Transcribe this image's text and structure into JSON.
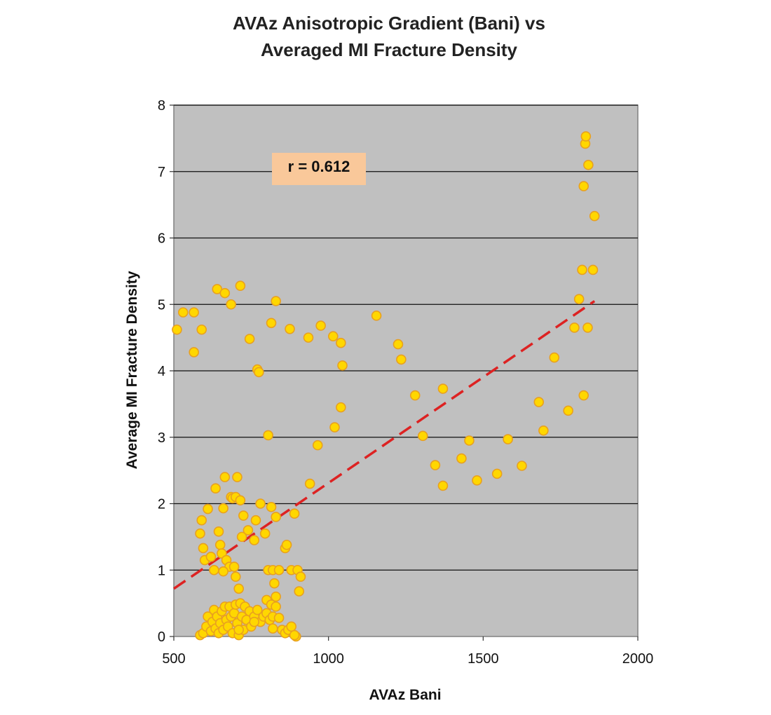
{
  "chart_data": {
    "type": "scatter",
    "title_lines": [
      "AVAz Anisotropic Gradient (Bani) vs",
      "Averaged MI Fracture Density"
    ],
    "xlabel": "AVAz Bani",
    "ylabel": "Average MI Fracture Density",
    "xlim": [
      500,
      2000
    ],
    "ylim": [
      0,
      8
    ],
    "xticks": [
      500,
      1000,
      1500,
      2000
    ],
    "yticks": [
      0,
      1,
      2,
      3,
      4,
      5,
      6,
      7,
      8
    ],
    "grid": "horizontal",
    "annotation": "r = 0.612",
    "colors": {
      "plot_background": "#c0c0c0",
      "point_fill": "#ffd700",
      "point_stroke": "#e8a020",
      "trendline": "#dd2222",
      "annotation_background": "#f9c89a",
      "gridline": "#111111"
    },
    "trendline": {
      "x": [
        500,
        1860
      ],
      "y": [
        0.72,
        5.05
      ],
      "style": "dashed"
    },
    "points": [
      {
        "x": 510,
        "y": 4.62
      },
      {
        "x": 530,
        "y": 4.88
      },
      {
        "x": 565,
        "y": 4.88
      },
      {
        "x": 565,
        "y": 4.28
      },
      {
        "x": 590,
        "y": 4.62
      },
      {
        "x": 640,
        "y": 5.23
      },
      {
        "x": 665,
        "y": 5.17
      },
      {
        "x": 685,
        "y": 5.0
      },
      {
        "x": 715,
        "y": 5.28
      },
      {
        "x": 745,
        "y": 4.48
      },
      {
        "x": 770,
        "y": 4.02
      },
      {
        "x": 775,
        "y": 3.98
      },
      {
        "x": 805,
        "y": 3.03
      },
      {
        "x": 815,
        "y": 4.72
      },
      {
        "x": 830,
        "y": 5.05
      },
      {
        "x": 875,
        "y": 4.63
      },
      {
        "x": 935,
        "y": 4.5
      },
      {
        "x": 965,
        "y": 2.88
      },
      {
        "x": 975,
        "y": 4.68
      },
      {
        "x": 1015,
        "y": 4.52
      },
      {
        "x": 1020,
        "y": 3.15
      },
      {
        "x": 1040,
        "y": 4.42
      },
      {
        "x": 1040,
        "y": 3.45
      },
      {
        "x": 1045,
        "y": 4.08
      },
      {
        "x": 940,
        "y": 2.3
      },
      {
        "x": 1155,
        "y": 4.83
      },
      {
        "x": 1225,
        "y": 4.4
      },
      {
        "x": 1235,
        "y": 4.17
      },
      {
        "x": 1280,
        "y": 3.63
      },
      {
        "x": 1305,
        "y": 3.02
      },
      {
        "x": 1345,
        "y": 2.58
      },
      {
        "x": 1370,
        "y": 3.73
      },
      {
        "x": 1370,
        "y": 2.27
      },
      {
        "x": 1430,
        "y": 2.68
      },
      {
        "x": 1455,
        "y": 2.95
      },
      {
        "x": 1480,
        "y": 2.35
      },
      {
        "x": 1545,
        "y": 2.45
      },
      {
        "x": 1580,
        "y": 2.97
      },
      {
        "x": 1625,
        "y": 2.57
      },
      {
        "x": 1680,
        "y": 3.53
      },
      {
        "x": 1695,
        "y": 3.1
      },
      {
        "x": 1730,
        "y": 4.2
      },
      {
        "x": 1775,
        "y": 3.4
      },
      {
        "x": 1795,
        "y": 4.65
      },
      {
        "x": 1810,
        "y": 5.08
      },
      {
        "x": 1820,
        "y": 5.52
      },
      {
        "x": 1825,
        "y": 3.63
      },
      {
        "x": 1825,
        "y": 6.78
      },
      {
        "x": 1830,
        "y": 7.42
      },
      {
        "x": 1832,
        "y": 7.53
      },
      {
        "x": 1840,
        "y": 7.1
      },
      {
        "x": 1838,
        "y": 4.65
      },
      {
        "x": 1855,
        "y": 5.52
      },
      {
        "x": 1860,
        "y": 6.33
      },
      {
        "x": 585,
        "y": 1.55
      },
      {
        "x": 590,
        "y": 1.75
      },
      {
        "x": 595,
        "y": 1.33
      },
      {
        "x": 600,
        "y": 1.15
      },
      {
        "x": 610,
        "y": 1.92
      },
      {
        "x": 620,
        "y": 1.2
      },
      {
        "x": 630,
        "y": 1.0
      },
      {
        "x": 635,
        "y": 2.23
      },
      {
        "x": 645,
        "y": 1.58
      },
      {
        "x": 650,
        "y": 1.38
      },
      {
        "x": 655,
        "y": 1.25
      },
      {
        "x": 660,
        "y": 1.93
      },
      {
        "x": 665,
        "y": 2.4
      },
      {
        "x": 670,
        "y": 1.15
      },
      {
        "x": 680,
        "y": 1.05
      },
      {
        "x": 685,
        "y": 2.1
      },
      {
        "x": 690,
        "y": 2.08
      },
      {
        "x": 695,
        "y": 1.05
      },
      {
        "x": 700,
        "y": 2.1
      },
      {
        "x": 705,
        "y": 2.4
      },
      {
        "x": 710,
        "y": 0.72
      },
      {
        "x": 715,
        "y": 2.05
      },
      {
        "x": 720,
        "y": 1.5
      },
      {
        "x": 725,
        "y": 1.82
      },
      {
        "x": 740,
        "y": 1.6
      },
      {
        "x": 760,
        "y": 1.45
      },
      {
        "x": 765,
        "y": 1.75
      },
      {
        "x": 780,
        "y": 2.0
      },
      {
        "x": 795,
        "y": 1.55
      },
      {
        "x": 805,
        "y": 1.0
      },
      {
        "x": 815,
        "y": 1.95
      },
      {
        "x": 820,
        "y": 1.0
      },
      {
        "x": 830,
        "y": 1.8
      },
      {
        "x": 840,
        "y": 1.0
      },
      {
        "x": 860,
        "y": 1.33
      },
      {
        "x": 865,
        "y": 1.38
      },
      {
        "x": 880,
        "y": 1.0
      },
      {
        "x": 890,
        "y": 1.85
      },
      {
        "x": 900,
        "y": 1.0
      },
      {
        "x": 905,
        "y": 0.68
      },
      {
        "x": 910,
        "y": 0.9
      },
      {
        "x": 800,
        "y": 0.55
      },
      {
        "x": 815,
        "y": 0.48
      },
      {
        "x": 825,
        "y": 0.8
      },
      {
        "x": 830,
        "y": 0.6
      },
      {
        "x": 700,
        "y": 0.9
      },
      {
        "x": 660,
        "y": 0.98
      },
      {
        "x": 585,
        "y": 0.02
      },
      {
        "x": 595,
        "y": 0.05
      },
      {
        "x": 605,
        "y": 0.15
      },
      {
        "x": 610,
        "y": 0.3
      },
      {
        "x": 620,
        "y": 0.08
      },
      {
        "x": 625,
        "y": 0.22
      },
      {
        "x": 630,
        "y": 0.4
      },
      {
        "x": 635,
        "y": 0.12
      },
      {
        "x": 640,
        "y": 0.3
      },
      {
        "x": 645,
        "y": 0.05
      },
      {
        "x": 650,
        "y": 0.2
      },
      {
        "x": 655,
        "y": 0.38
      },
      {
        "x": 660,
        "y": 0.1
      },
      {
        "x": 665,
        "y": 0.45
      },
      {
        "x": 670,
        "y": 0.25
      },
      {
        "x": 675,
        "y": 0.15
      },
      {
        "x": 680,
        "y": 0.45
      },
      {
        "x": 685,
        "y": 0.3
      },
      {
        "x": 690,
        "y": 0.05
      },
      {
        "x": 695,
        "y": 0.35
      },
      {
        "x": 700,
        "y": 0.48
      },
      {
        "x": 705,
        "y": 0.2
      },
      {
        "x": 710,
        "y": 0.02
      },
      {
        "x": 715,
        "y": 0.5
      },
      {
        "x": 720,
        "y": 0.3
      },
      {
        "x": 725,
        "y": 0.1
      },
      {
        "x": 730,
        "y": 0.45
      },
      {
        "x": 735,
        "y": 0.25
      },
      {
        "x": 745,
        "y": 0.38
      },
      {
        "x": 750,
        "y": 0.15
      },
      {
        "x": 760,
        "y": 0.3
      },
      {
        "x": 770,
        "y": 0.4
      },
      {
        "x": 780,
        "y": 0.22
      },
      {
        "x": 790,
        "y": 0.3
      },
      {
        "x": 800,
        "y": 0.35
      },
      {
        "x": 810,
        "y": 0.25
      },
      {
        "x": 820,
        "y": 0.3
      },
      {
        "x": 830,
        "y": 0.45
      },
      {
        "x": 840,
        "y": 0.28
      },
      {
        "x": 850,
        "y": 0.1
      },
      {
        "x": 860,
        "y": 0.05
      },
      {
        "x": 870,
        "y": 0.1
      },
      {
        "x": 880,
        "y": 0.15
      },
      {
        "x": 895,
        "y": 0.0
      },
      {
        "x": 890,
        "y": 0.02
      },
      {
        "x": 710,
        "y": 0.1
      },
      {
        "x": 760,
        "y": 0.22
      },
      {
        "x": 820,
        "y": 0.12
      }
    ]
  }
}
